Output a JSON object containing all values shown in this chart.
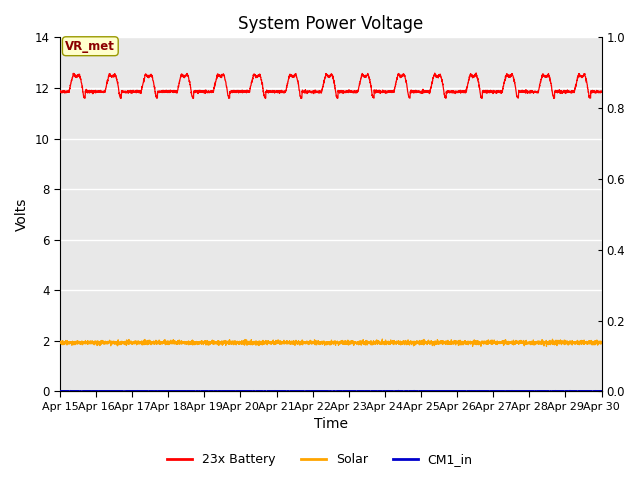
{
  "title": "System Power Voltage",
  "xlabel": "Time",
  "ylabel": "Volts",
  "ylim_left": [
    0,
    14
  ],
  "ylim_right": [
    0.0,
    1.0
  ],
  "yticks_left": [
    0,
    2,
    4,
    6,
    8,
    10,
    12,
    14
  ],
  "yticks_right": [
    0.0,
    0.2,
    0.4,
    0.6,
    0.8,
    1.0
  ],
  "x_labels": [
    "Apr 15",
    "Apr 16",
    "Apr 17",
    "Apr 18",
    "Apr 19",
    "Apr 20",
    "Apr 21",
    "Apr 22",
    "Apr 23",
    "Apr 24",
    "Apr 25",
    "Apr 26",
    "Apr 27",
    "Apr 28",
    "Apr 29",
    "Apr 30"
  ],
  "background_color": "#ffffff",
  "plot_bg_color": "#e8e8e8",
  "grid_color": "#ffffff",
  "battery_color": "#ff0000",
  "solar_color": "#ffa500",
  "cm1_color": "#0000cc",
  "legend_entries": [
    "23x Battery",
    "Solar",
    "CM1_in"
  ],
  "vr_met_label": "VR_met",
  "vr_met_box_color": "#ffffcc",
  "vr_met_border_color": "#999900",
  "vr_met_text_color": "#8B0000",
  "title_fontsize": 12,
  "axis_fontsize": 10,
  "tick_fontsize": 8.5,
  "n_days": 15,
  "battery_base": 11.85,
  "solar_base": 1.93,
  "seed": 42
}
